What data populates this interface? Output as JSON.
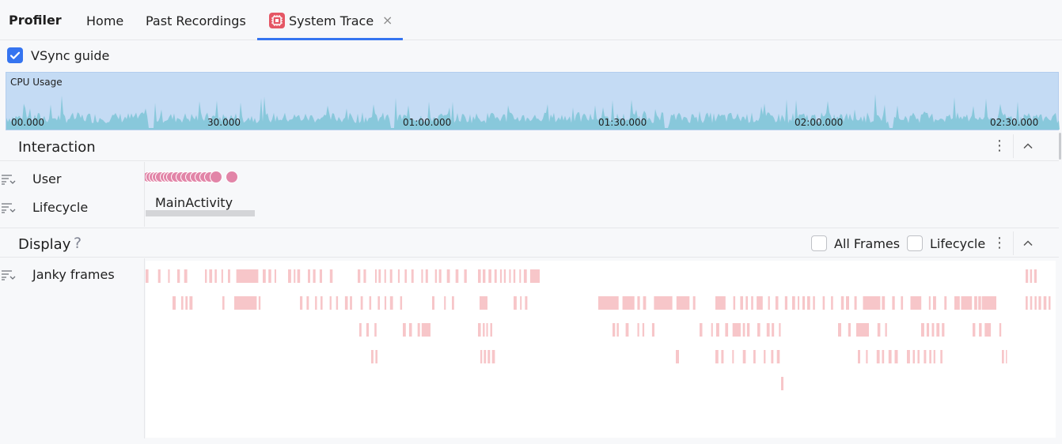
{
  "app": {
    "title": "Profiler"
  },
  "tabs": {
    "home": "Home",
    "past_recordings": "Past Recordings",
    "system_trace": "System Trace",
    "close_glyph": "×"
  },
  "vsync": {
    "label": "VSync guide",
    "checked": true
  },
  "cpu": {
    "title": "CPU Usage",
    "ticks": [
      "00.000",
      "30.000",
      "01:00.000",
      "01:30.000",
      "02:00.000",
      "02:30.000"
    ]
  },
  "interaction": {
    "title": "Interaction",
    "menu_glyph": "⋮",
    "rows": {
      "user": "User",
      "lifecycle": "Lifecycle"
    },
    "activity": "MainActivity"
  },
  "display": {
    "title": "Display",
    "help_glyph": "?",
    "menu_glyph": "⋮",
    "all_frames": {
      "label": "All Frames",
      "checked": false
    },
    "lifecycle": {
      "label": "Lifecycle",
      "checked": false
    },
    "rows": {
      "janky": "Janky frames"
    }
  },
  "colors": {
    "accent": "#3574f0",
    "cpu_bg": "#c4dbf4",
    "cpu_line": "#7ec4d6",
    "user_event": "#e285a8",
    "janky_frame": "#f7c6c9",
    "lifecycle_bar": "#d4d5d8"
  },
  "icons": {
    "tab_trace": "system-trace-icon",
    "row_filter": "filter-list-icon",
    "collapse": "chevron-up-icon",
    "checkbox": "check-icon"
  }
}
